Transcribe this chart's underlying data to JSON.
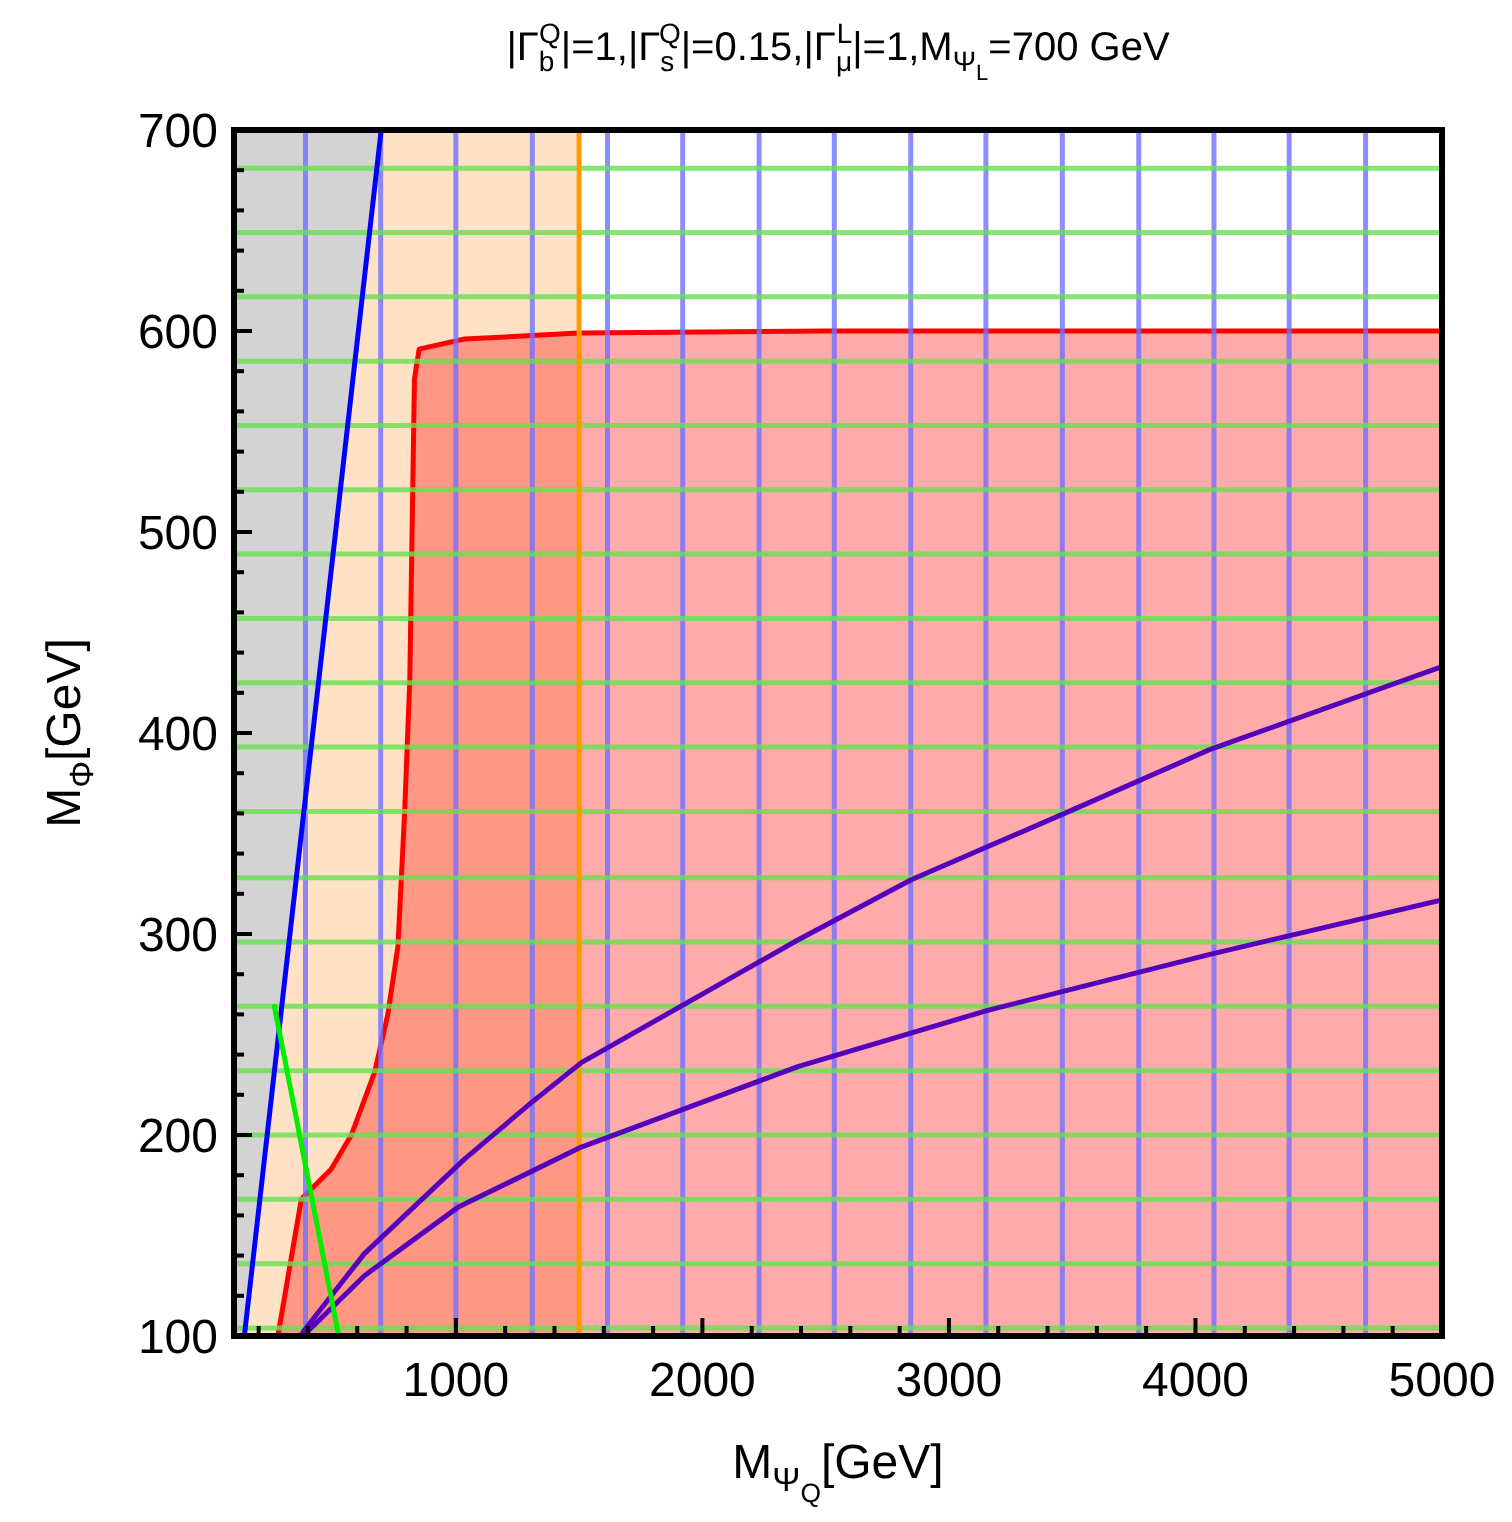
{
  "chart_data": {
    "type": "line",
    "title": "|Γ$_{b}$$^{Q}$|=1,|Γ$_{s}$$^{Q}$|=0.15,|Γ$_{μ}$$^{L}$|=1,M$_{Ψ}$$_{L}$=700 GeV",
    "xlabel": "M$_{Ψ}$$_{Q}$[GeV]",
    "ylabel": "M$_{Φ}$[GeV]",
    "xlim": [
      100,
      5000
    ],
    "ylim": [
      100,
      700
    ],
    "xticks": [
      {
        "value": 200,
        "label": null
      },
      {
        "value": 400,
        "label": null
      },
      {
        "value": 600,
        "label": null
      },
      {
        "value": 800,
        "label": null
      },
      1000,
      {
        "value": 1200,
        "label": null
      },
      {
        "value": 1400,
        "label": null
      },
      {
        "value": 1600,
        "label": null
      },
      {
        "value": 1800,
        "label": null
      },
      2000,
      {
        "value": 2200,
        "label": null
      },
      {
        "value": 2400,
        "label": null
      },
      {
        "value": 2600,
        "label": null
      },
      {
        "value": 2800,
        "label": null
      },
      3000,
      {
        "value": 3200,
        "label": null
      },
      {
        "value": 3400,
        "label": null
      },
      {
        "value": 3600,
        "label": null
      },
      {
        "value": 3800,
        "label": null
      },
      4000,
      {
        "value": 4200,
        "label": null
      },
      {
        "value": 4400,
        "label": null
      },
      {
        "value": 4600,
        "label": null
      },
      {
        "value": 4800,
        "label": null
      },
      5000
    ],
    "yticks": [
      100,
      {
        "value": 120,
        "label": null
      },
      {
        "value": 140,
        "label": null
      },
      {
        "value": 160,
        "label": null
      },
      {
        "value": 180,
        "label": null
      },
      200,
      {
        "value": 220,
        "label": null
      },
      {
        "value": 240,
        "label": null
      },
      {
        "value": 260,
        "label": null
      },
      {
        "value": 280,
        "label": null
      },
      300,
      {
        "value": 320,
        "label": null
      },
      {
        "value": 340,
        "label": null
      },
      {
        "value": 360,
        "label": null
      },
      {
        "value": 380,
        "label": null
      },
      400,
      {
        "value": 420,
        "label": null
      },
      {
        "value": 440,
        "label": null
      },
      {
        "value": 460,
        "label": null
      },
      {
        "value": 480,
        "label": null
      },
      500,
      {
        "value": 520,
        "label": null
      },
      {
        "value": 540,
        "label": null
      },
      {
        "value": 560,
        "label": null
      },
      {
        "value": 580,
        "label": null
      },
      600,
      {
        "value": 620,
        "label": null
      },
      {
        "value": 640,
        "label": null
      },
      {
        "value": 660,
        "label": null
      },
      {
        "value": 680,
        "label": null
      },
      700
    ],
    "series": [
      {
        "type": "area",
        "color": "#d3d3d3",
        "x": [
          100,
          697
        ],
        "values": [
          700,
          700
        ]
      },
      {
        "type": "area",
        "color": "#ffe2c6",
        "x": [
          142,
          697,
          1500
        ],
        "values": [
          100,
          700,
          700
        ]
      },
      {
        "type": "area",
        "color": "#ff0000",
        "x": [
          278,
          373,
          413,
          494,
          576,
          670,
          724,
          765,
          792,
          813,
          832,
          851,
          1035,
          1500,
          2500,
          5000
        ],
        "values": [
          100,
          168,
          173,
          183,
          200,
          231,
          260,
          294,
          360,
          426,
          576,
          591,
          596,
          599,
          600,
          600
        ]
      },
      {
        "color": "#0000ff",
        "x": [
          142,
          697
        ],
        "values": [
          100,
          700
        ]
      },
      {
        "color": "#ff9900",
        "x": [
          1500,
          1500
        ],
        "values": [
          100,
          700
        ]
      },
      {
        "color": "#5500bb",
        "x": [
          370,
          386,
          629,
          1035,
          1305,
          1509,
          2387,
          2847,
          3469,
          4063,
          5000
        ],
        "values": [
          100,
          103,
          141,
          188,
          216,
          236,
          297,
          327,
          360,
          392,
          433
        ]
      },
      {
        "color": "#5500bb",
        "x": [
          380,
          629,
          1008,
          1509,
          2387,
          3157,
          4063,
          5000
        ],
        "values": [
          100,
          130,
          164,
          194,
          234,
          262,
          290,
          317
        ]
      },
      {
        "color": "#00ee00",
        "x": [
          264,
          525
        ],
        "values": [
          264,
          100
        ]
      }
    ],
    "ref_lines": [
      {
        "axis": "x",
        "value": 390,
        "color": "#7070ff"
      },
      {
        "axis": "x",
        "value": 695,
        "color": "#7070ff"
      },
      {
        "axis": "x",
        "value": 1000,
        "color": "#7070ff"
      },
      {
        "axis": "x",
        "value": 1310,
        "color": "#7070ff"
      },
      {
        "axis": "x",
        "value": 1615,
        "color": "#7070ff"
      },
      {
        "axis": "x",
        "value": 1920,
        "color": "#7070ff"
      },
      {
        "axis": "x",
        "value": 2230,
        "color": "#7070ff"
      },
      {
        "axis": "x",
        "value": 2535,
        "color": "#7070ff"
      },
      {
        "axis": "x",
        "value": 2845,
        "color": "#7070ff"
      },
      {
        "axis": "x",
        "value": 3150,
        "color": "#7070ff"
      },
      {
        "axis": "x",
        "value": 3460,
        "color": "#7070ff"
      },
      {
        "axis": "x",
        "value": 3770,
        "color": "#7070ff"
      },
      {
        "axis": "x",
        "value": 4075,
        "color": "#7070ff"
      },
      {
        "axis": "x",
        "value": 4380,
        "color": "#7070ff"
      },
      {
        "axis": "x",
        "value": 4690,
        "color": "#7070ff"
      },
      {
        "axis": "y",
        "value": 104,
        "color": "#66e050"
      },
      {
        "axis": "y",
        "value": 136,
        "color": "#66e050"
      },
      {
        "axis": "y",
        "value": 168,
        "color": "#66e050"
      },
      {
        "axis": "y",
        "value": 200,
        "color": "#66e050"
      },
      {
        "axis": "y",
        "value": 232,
        "color": "#66e050"
      },
      {
        "axis": "y",
        "value": 264,
        "color": "#66e050"
      },
      {
        "axis": "y",
        "value": 296,
        "color": "#66e050"
      },
      {
        "axis": "y",
        "value": 328,
        "color": "#66e050"
      },
      {
        "axis": "y",
        "value": 361,
        "color": "#66e050"
      },
      {
        "axis": "y",
        "value": 393,
        "color": "#66e050"
      },
      {
        "axis": "y",
        "value": 425,
        "color": "#66e050"
      },
      {
        "axis": "y",
        "value": 457,
        "color": "#66e050"
      },
      {
        "axis": "y",
        "value": 489,
        "color": "#66e050"
      },
      {
        "axis": "y",
        "value": 521,
        "color": "#66e050"
      },
      {
        "axis": "y",
        "value": 553,
        "color": "#66e050"
      },
      {
        "axis": "y",
        "value": 585,
        "color": "#66e050"
      },
      {
        "axis": "y",
        "value": 617,
        "color": "#66e050"
      },
      {
        "axis": "y",
        "value": 649,
        "color": "#66e050"
      },
      {
        "axis": "y",
        "value": 681,
        "color": "#66e050"
      }
    ]
  }
}
